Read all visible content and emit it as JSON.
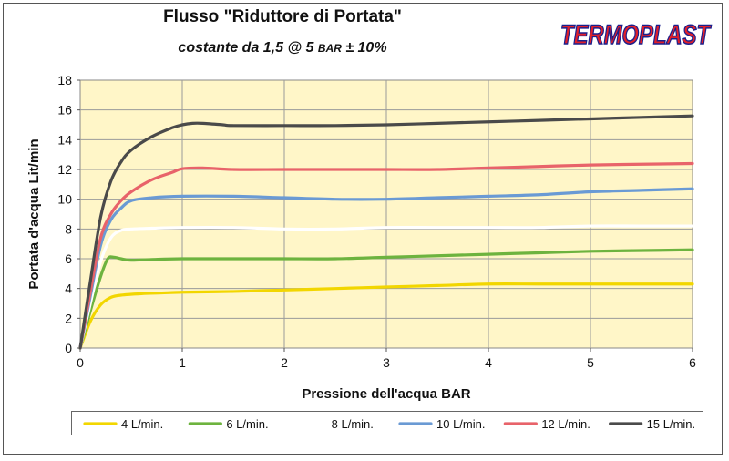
{
  "header": {
    "title": "Flusso \"Riduttore di Portata\"",
    "subtitle_prefix": "costante da 1,5 @ 5 ",
    "subtitle_unit": "BAR",
    "subtitle_suffix": " ± 10%",
    "logo_text_1": "TERMO",
    "logo_text_2": "PLAST"
  },
  "colors": {
    "plot_background": "#FFF6C8",
    "logo_red": "#E0202A",
    "logo_blue": "#1A1F8C"
  },
  "chart_data": {
    "type": "line",
    "title": "",
    "xlabel": "Pressione dell'acqua  BAR",
    "ylabel": "Portata d'acqua  Lit/min",
    "xlim": [
      0,
      6
    ],
    "ylim": [
      0,
      18
    ],
    "xticks": [
      "0",
      "1",
      "2",
      "3",
      "4",
      "5",
      "6"
    ],
    "yticks": [
      "0",
      "2",
      "4",
      "6",
      "8",
      "10",
      "12",
      "14",
      "16",
      "18"
    ],
    "grid": true,
    "legend_position": "bottom",
    "series": [
      {
        "name": "4 L/min.",
        "color": "#F2D600",
        "x": [
          0,
          0.1,
          0.2,
          0.3,
          0.4,
          0.6,
          0.8,
          1,
          1.5,
          2,
          2.5,
          3,
          3.5,
          4,
          4.5,
          5,
          5.5,
          6
        ],
        "y": [
          0,
          1.8,
          2.9,
          3.4,
          3.55,
          3.65,
          3.7,
          3.75,
          3.8,
          3.9,
          4.0,
          4.1,
          4.2,
          4.3,
          4.3,
          4.3,
          4.3,
          4.3
        ]
      },
      {
        "name": "6 L/min.",
        "color": "#6DB33F",
        "x": [
          0,
          0.1,
          0.2,
          0.27,
          0.33,
          0.4,
          0.5,
          0.7,
          1,
          1.5,
          2,
          2.5,
          3,
          3.5,
          4,
          4.5,
          5,
          5.5,
          6
        ],
        "y": [
          0,
          2.5,
          4.8,
          6.0,
          6.1,
          6.0,
          5.9,
          5.95,
          6.0,
          6.0,
          6.0,
          6.0,
          6.1,
          6.2,
          6.3,
          6.4,
          6.5,
          6.55,
          6.6
        ]
      },
      {
        "name": "8 L/min.",
        "color": "#FFFFFF",
        "x": [
          0,
          0.1,
          0.2,
          0.3,
          0.4,
          0.5,
          0.7,
          1,
          1.5,
          2,
          2.5,
          3,
          3.5,
          4,
          4.5,
          5,
          5.5,
          6
        ],
        "y": [
          0,
          3.0,
          5.8,
          7.4,
          7.9,
          8.0,
          8.05,
          8.1,
          8.1,
          8.0,
          8.0,
          8.1,
          8.1,
          8.1,
          8.1,
          8.2,
          8.2,
          8.2
        ]
      },
      {
        "name": "10 L/min.",
        "color": "#6A9AD4",
        "x": [
          0,
          0.1,
          0.2,
          0.3,
          0.4,
          0.5,
          0.7,
          1,
          1.5,
          2,
          2.5,
          3,
          3.5,
          4,
          4.5,
          5,
          5.5,
          6
        ],
        "y": [
          0,
          3.5,
          6.9,
          8.6,
          9.4,
          9.9,
          10.1,
          10.2,
          10.2,
          10.1,
          10.0,
          10.0,
          10.1,
          10.2,
          10.3,
          10.5,
          10.6,
          10.7
        ]
      },
      {
        "name": "12 L/min.",
        "color": "#E8636A",
        "x": [
          0,
          0.1,
          0.2,
          0.3,
          0.4,
          0.5,
          0.7,
          0.9,
          1,
          1.2,
          1.5,
          2,
          2.5,
          3,
          3.5,
          4,
          4.5,
          5,
          5.5,
          6
        ],
        "y": [
          0,
          3.8,
          7.4,
          9.0,
          9.9,
          10.5,
          11.3,
          11.8,
          12.05,
          12.1,
          12.0,
          12.0,
          12.0,
          12.0,
          12.0,
          12.1,
          12.2,
          12.3,
          12.35,
          12.4
        ]
      },
      {
        "name": "15 L/min.",
        "color": "#4A4A4A",
        "x": [
          0,
          0.1,
          0.2,
          0.3,
          0.4,
          0.5,
          0.7,
          0.9,
          1,
          1.1,
          1.2,
          1.4,
          1.5,
          2,
          2.5,
          3,
          3.5,
          4,
          4.5,
          5,
          5.5,
          6
        ],
        "y": [
          0,
          4.5,
          8.8,
          11.2,
          12.5,
          13.3,
          14.2,
          14.8,
          15.0,
          15.1,
          15.1,
          15.0,
          14.95,
          14.95,
          14.95,
          15.0,
          15.1,
          15.2,
          15.3,
          15.4,
          15.5,
          15.6
        ]
      }
    ]
  }
}
